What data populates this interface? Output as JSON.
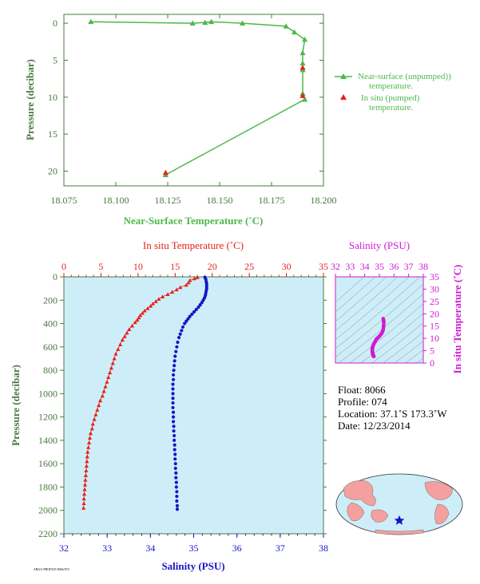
{
  "colors": {
    "surface_green": "#4db84a",
    "insitu_red": "#e8201a",
    "salinity_blue": "#1515c8",
    "salinity_magenta": "#d21ad2",
    "axis_green": "#4a7a40",
    "panel_bg": "#cdeef8",
    "land": "#f4a0a0",
    "ocean": "#cdeef8"
  },
  "chart_data": [
    {
      "id": "near_surface",
      "type": "line",
      "xlabel": "Near-Surface Temperature (˚C)",
      "ylabel": "Pressure (decibar)",
      "xlim": [
        18.075,
        18.2
      ],
      "ylim": [
        22,
        -1.2
      ],
      "xticks": [
        "18.075",
        "18.100",
        "18.125",
        "18.150",
        "18.175",
        "18.200"
      ],
      "yticks": [
        "0",
        "5",
        "10",
        "15",
        "20"
      ],
      "series": [
        {
          "name": "Near-surface (unpumped) temperature.",
          "points": [
            [
              18.088,
              -0.2
            ],
            [
              18.137,
              0.0
            ],
            [
              18.143,
              -0.1
            ],
            [
              18.146,
              -0.2
            ],
            [
              18.161,
              0.0
            ],
            [
              18.182,
              0.4
            ],
            [
              18.186,
              1.2
            ],
            [
              18.191,
              2.2
            ],
            [
              18.19,
              4.0
            ],
            [
              18.19,
              5.4
            ],
            [
              18.19,
              6.3
            ],
            [
              18.19,
              9.5
            ],
            [
              18.191,
              10.3
            ],
            [
              18.124,
              20.5
            ]
          ]
        },
        {
          "name": "In situ (pumped) temperature.",
          "points": [
            [
              18.19,
              6.0
            ],
            [
              18.19,
              9.8
            ],
            [
              18.124,
              20.2
            ]
          ]
        }
      ]
    },
    {
      "id": "profile",
      "type": "line",
      "x_top_label": "In situ Temperature (˚C)",
      "x_bottom_label": "Salinity (PSU)",
      "ylabel": "Pressure (decibar)",
      "temp_lim": [
        0,
        35
      ],
      "sal_lim": [
        32,
        38
      ],
      "ylim": [
        0,
        2200
      ],
      "temp_ticks": [
        "0",
        "5",
        "10",
        "15",
        "20",
        "25",
        "30",
        "35"
      ],
      "sal_ticks": [
        "32",
        "33",
        "34",
        "35",
        "36",
        "37",
        "38"
      ],
      "yticks": [
        "0",
        "200",
        "400",
        "600",
        "800",
        "1000",
        "1200",
        "1400",
        "1600",
        "1800",
        "2000",
        "2200"
      ],
      "temperature": [
        [
          18.0,
          5
        ],
        [
          17.6,
          15
        ],
        [
          17.0,
          30
        ],
        [
          16.8,
          50
        ],
        [
          16.5,
          70
        ],
        [
          15.7,
          90
        ],
        [
          15.2,
          110
        ],
        [
          14.6,
          130
        ],
        [
          14.0,
          150
        ],
        [
          13.3,
          170
        ],
        [
          12.8,
          190
        ],
        [
          12.4,
          210
        ],
        [
          12.0,
          230
        ],
        [
          11.7,
          250
        ],
        [
          11.3,
          270
        ],
        [
          10.9,
          290
        ],
        [
          10.6,
          310
        ],
        [
          10.3,
          330
        ],
        [
          10.1,
          350
        ],
        [
          9.9,
          370
        ],
        [
          9.6,
          390
        ],
        [
          9.2,
          420
        ],
        [
          8.8,
          450
        ],
        [
          8.5,
          480
        ],
        [
          8.2,
          510
        ],
        [
          7.9,
          540
        ],
        [
          7.6,
          580
        ],
        [
          7.3,
          620
        ],
        [
          7.0,
          660
        ],
        [
          6.8,
          700
        ],
        [
          6.6,
          740
        ],
        [
          6.4,
          780
        ],
        [
          6.2,
          820
        ],
        [
          6.0,
          860
        ],
        [
          5.8,
          900
        ],
        [
          5.6,
          940
        ],
        [
          5.4,
          980
        ],
        [
          5.2,
          1020
        ],
        [
          4.9,
          1060
        ],
        [
          4.7,
          1100
        ],
        [
          4.5,
          1140
        ],
        [
          4.3,
          1180
        ],
        [
          4.1,
          1220
        ],
        [
          3.9,
          1260
        ],
        [
          3.8,
          1300
        ],
        [
          3.6,
          1340
        ],
        [
          3.5,
          1380
        ],
        [
          3.4,
          1420
        ],
        [
          3.3,
          1460
        ],
        [
          3.2,
          1500
        ],
        [
          3.15,
          1540
        ],
        [
          3.1,
          1580
        ],
        [
          3.05,
          1620
        ],
        [
          3.0,
          1660
        ],
        [
          2.95,
          1700
        ],
        [
          2.9,
          1740
        ],
        [
          2.85,
          1780
        ],
        [
          2.8,
          1820
        ],
        [
          2.75,
          1860
        ],
        [
          2.7,
          1900
        ],
        [
          2.7,
          1940
        ],
        [
          2.65,
          1980
        ]
      ],
      "salinity": [
        [
          35.26,
          5
        ],
        [
          35.28,
          20
        ],
        [
          35.29,
          40
        ],
        [
          35.3,
          60
        ],
        [
          35.3,
          80
        ],
        [
          35.3,
          100
        ],
        [
          35.29,
          120
        ],
        [
          35.28,
          140
        ],
        [
          35.27,
          160
        ],
        [
          35.25,
          180
        ],
        [
          35.22,
          200
        ],
        [
          35.19,
          220
        ],
        [
          35.15,
          240
        ],
        [
          35.11,
          260
        ],
        [
          35.06,
          280
        ],
        [
          35.01,
          300
        ],
        [
          34.96,
          320
        ],
        [
          34.91,
          340
        ],
        [
          34.87,
          360
        ],
        [
          34.83,
          380
        ],
        [
          34.79,
          400
        ],
        [
          34.75,
          430
        ],
        [
          34.72,
          460
        ],
        [
          34.69,
          490
        ],
        [
          34.66,
          520
        ],
        [
          34.63,
          560
        ],
        [
          34.61,
          600
        ],
        [
          34.59,
          640
        ],
        [
          34.57,
          680
        ],
        [
          34.56,
          720
        ],
        [
          34.55,
          760
        ],
        [
          34.54,
          800
        ],
        [
          34.53,
          840
        ],
        [
          34.53,
          880
        ],
        [
          34.52,
          920
        ],
        [
          34.52,
          960
        ],
        [
          34.52,
          1000
        ],
        [
          34.52,
          1040
        ],
        [
          34.52,
          1080
        ],
        [
          34.52,
          1120
        ],
        [
          34.53,
          1160
        ],
        [
          34.53,
          1200
        ],
        [
          34.53,
          1240
        ],
        [
          34.54,
          1280
        ],
        [
          34.54,
          1320
        ],
        [
          34.55,
          1360
        ],
        [
          34.55,
          1400
        ],
        [
          34.56,
          1440
        ],
        [
          34.56,
          1480
        ],
        [
          34.57,
          1520
        ],
        [
          34.57,
          1560
        ],
        [
          34.58,
          1600
        ],
        [
          34.58,
          1640
        ],
        [
          34.59,
          1680
        ],
        [
          34.59,
          1720
        ],
        [
          34.6,
          1760
        ],
        [
          34.6,
          1800
        ],
        [
          34.61,
          1840
        ],
        [
          34.61,
          1880
        ],
        [
          34.61,
          1920
        ],
        [
          34.62,
          1960
        ],
        [
          34.62,
          1990
        ]
      ]
    },
    {
      "id": "ts_diagram",
      "type": "scatter",
      "top_label": "Salinity (PSU)",
      "right_label": "In situ Temperature (˚C)",
      "sal_lim": [
        32,
        38
      ],
      "temp_lim": [
        0,
        35
      ],
      "sal_ticks": [
        "32",
        "33",
        "34",
        "35",
        "36",
        "37",
        "38"
      ],
      "temp_ticks": [
        "0",
        "5",
        "10",
        "15",
        "20",
        "25",
        "30",
        "35"
      ]
    }
  ],
  "float_info": {
    "float": "Float:  8066",
    "profile": "Profile:  074",
    "location": "Location:  37.1˚S  173.3˚W",
    "date": "Date:  12/23/2014"
  },
  "map": {
    "marker": "star",
    "marker_color": "#1515c8"
  },
  "footer_code": "ARGO PROFILE 8066/074"
}
